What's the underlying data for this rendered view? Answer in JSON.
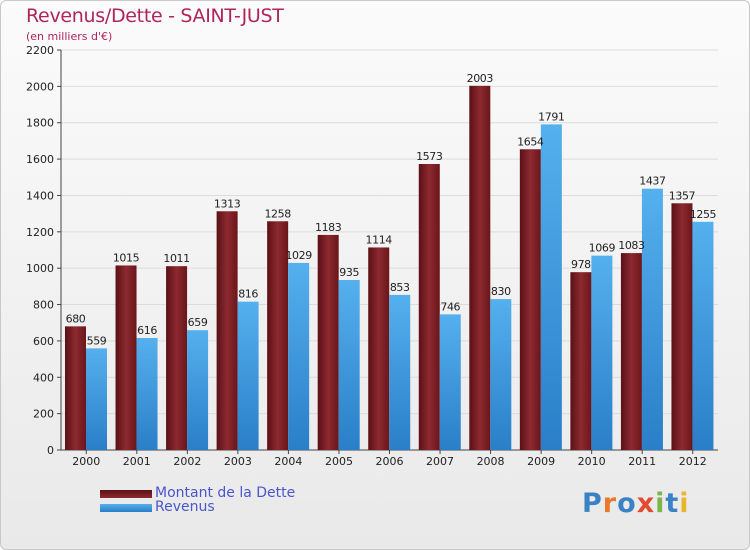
{
  "title": "Revenus/Dette - SAINT-JUST",
  "subtitle": "(en milliers d'€)",
  "logo": {
    "text": "Proxiti",
    "colors": [
      "#3b82c4",
      "#e8792b",
      "#3b82c4",
      "#e34a2e",
      "#7ab648",
      "#3b82c4",
      "#e8b62b"
    ]
  },
  "colors": {
    "dette": "#7a1f24",
    "revenus": "#3f9fe0",
    "title": "#b0245a",
    "legend_text": "#4a55cc"
  },
  "chart_data": {
    "type": "bar",
    "title": "Revenus/Dette - SAINT-JUST",
    "ylabel": "",
    "xlabel": "",
    "ylim": [
      0,
      2200
    ],
    "yticks": [
      0,
      200,
      400,
      600,
      800,
      1000,
      1200,
      1400,
      1600,
      1800,
      2000,
      2200
    ],
    "grid": true,
    "legend_position": "bottom-left",
    "categories": [
      "2000",
      "2001",
      "2002",
      "2003",
      "2004",
      "2005",
      "2006",
      "2007",
      "2008",
      "2009",
      "2010",
      "2011",
      "2012"
    ],
    "series": [
      {
        "name": "Montant de la Dette",
        "values": [
          680,
          1015,
          1011,
          1313,
          1258,
          1183,
          1114,
          1573,
          2003,
          1654,
          978,
          1083,
          1357
        ],
        "labels": [
          "680",
          "1015",
          "1011",
          "1313",
          "1258",
          "1183",
          "1114",
          "1573",
          "2003",
          "1654",
          "978",
          "1083",
          "1357"
        ]
      },
      {
        "name": "Revenus",
        "values": [
          559,
          616,
          659,
          816,
          1029,
          935,
          853,
          746,
          830,
          1791,
          1069,
          1437,
          1255
        ],
        "labels": [
          "559",
          "616",
          "659",
          "816",
          "1029",
          "935",
          "853",
          "746",
          "830",
          "1791",
          "1069",
          "1437",
          "1255"
        ]
      }
    ]
  }
}
